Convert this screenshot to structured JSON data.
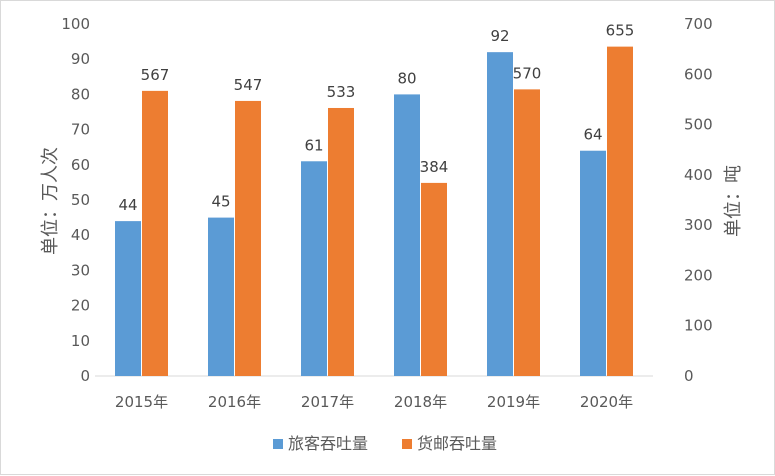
{
  "chart_data": {
    "type": "bar",
    "categories": [
      "2015年",
      "2016年",
      "2017年",
      "2018年",
      "2019年",
      "2020年"
    ],
    "series": [
      {
        "name": "旅客吞吐量",
        "axis": "left",
        "color": "#5b9bd5",
        "values": [
          44,
          45,
          61,
          80,
          92,
          64
        ]
      },
      {
        "name": "货邮吞吐量",
        "axis": "right",
        "color": "#ed7d31",
        "values": [
          567,
          547,
          533,
          384,
          570,
          655
        ]
      }
    ],
    "title": "",
    "ylabel_left": "单位：万人次",
    "ylabel_right": "单位：吨",
    "ylim_left": [
      0,
      100
    ],
    "yticks_left": [
      "0",
      "10",
      "20",
      "30",
      "40",
      "50",
      "60",
      "70",
      "80",
      "90",
      "100"
    ],
    "ylim_right": [
      0,
      700
    ],
    "yticks_right": [
      "0",
      "100",
      "200",
      "300",
      "400",
      "500",
      "600",
      "700"
    ],
    "grid": false,
    "legend_position": "bottom"
  }
}
